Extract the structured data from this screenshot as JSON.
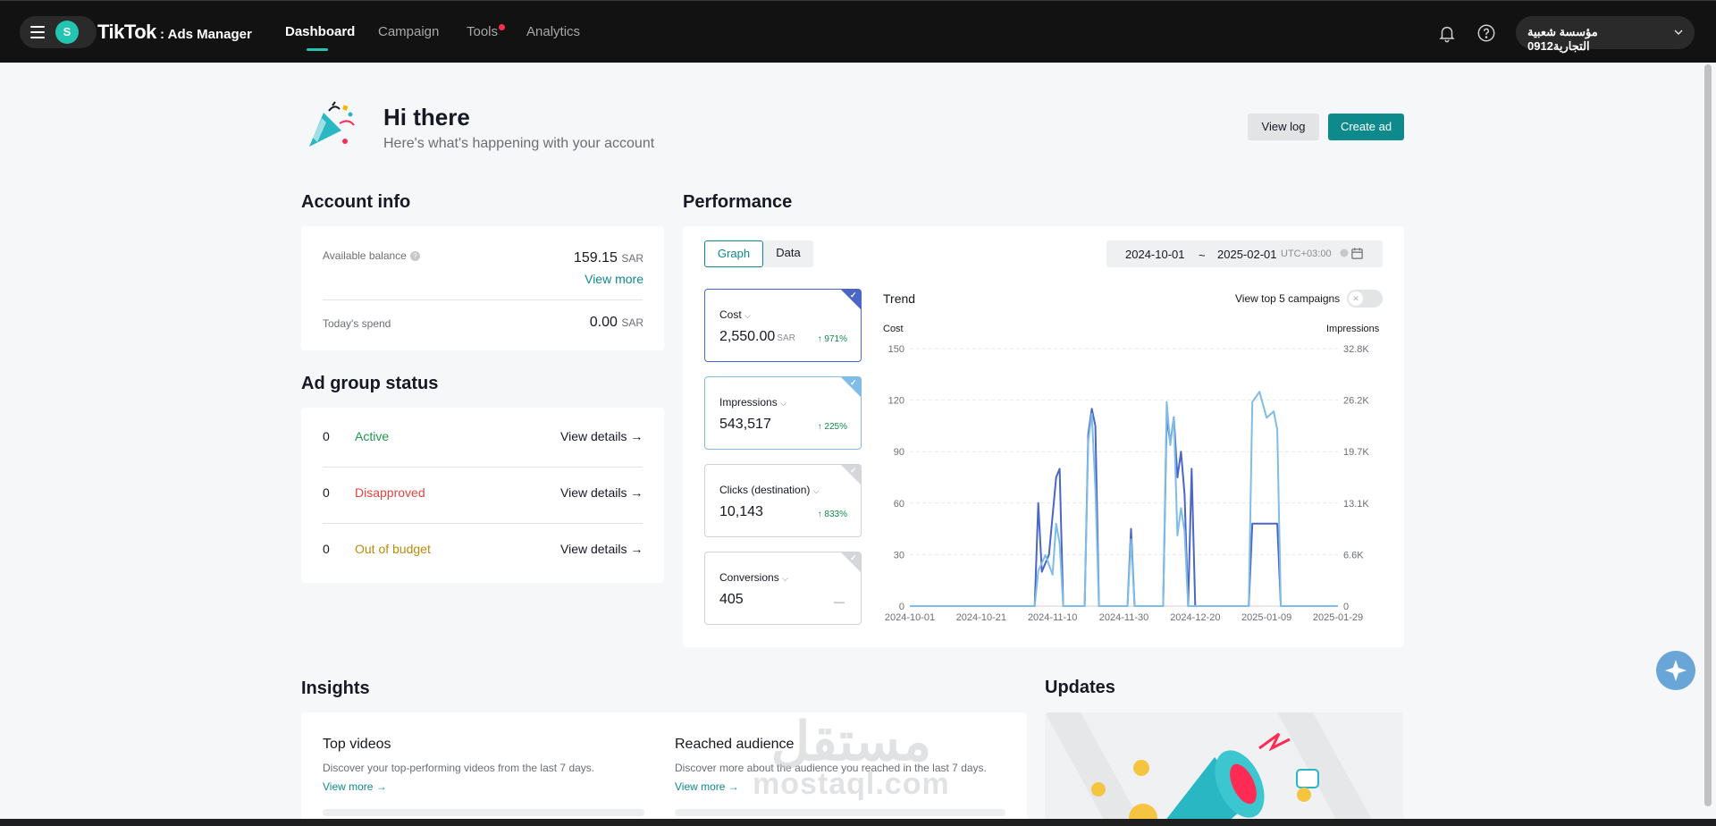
{
  "nav": {
    "logo": "TikTok",
    "logo_sub": "Ads Manager",
    "avatar_letter": "S",
    "items": [
      "Dashboard",
      "Campaign",
      "Tools",
      "Analytics"
    ],
    "account_name": "مؤسسة شعبية التجارية0912"
  },
  "header": {
    "greeting": "Hi there",
    "subtitle": "Here's what's happening with your account",
    "view_log": "View log",
    "create_ad": "Create ad"
  },
  "account_info": {
    "title": "Account info",
    "balance_label": "Available balance",
    "balance_value": "159.15",
    "currency": "SAR",
    "view_more": "View more",
    "spend_label": "Today's spend",
    "spend_value": "0.00"
  },
  "ad_group_status": {
    "title": "Ad group status",
    "rows": [
      {
        "count": "0",
        "label": "Active",
        "color": "#1a9a4a",
        "link": "View details →"
      },
      {
        "count": "0",
        "label": "Disapproved",
        "color": "#e0453f",
        "link": "View details →"
      },
      {
        "count": "0",
        "label": "Out of budget",
        "color": "#b88a0a",
        "link": "View details →"
      }
    ]
  },
  "performance": {
    "title": "Performance",
    "tab_graph": "Graph",
    "tab_data": "Data",
    "date_start": "2024-10-01",
    "date_sep": "~",
    "date_end": "2025-02-01",
    "timezone": "UTC+03:00",
    "metrics": [
      {
        "name": "Cost",
        "value": "2,550.00",
        "unit": "SAR",
        "change": "↑ 971%"
      },
      {
        "name": "Impressions",
        "value": "543,517",
        "unit": "",
        "change": "↑ 225%"
      },
      {
        "name": "Clicks (destination)",
        "value": "10,143",
        "unit": "",
        "change": "↑ 833%"
      },
      {
        "name": "Conversions",
        "value": "405",
        "unit": "",
        "change": "—"
      }
    ],
    "trend_title": "Trend",
    "top5_label": "View top 5 campaigns"
  },
  "chart_data": {
    "type": "line",
    "title": "Trend",
    "ylabel_left": "Cost",
    "ylabel_right": "Impressions",
    "y_left_ticks": [
      "150",
      "120",
      "90",
      "60",
      "30",
      "0"
    ],
    "y_right_ticks": [
      "32.8K",
      "26.2K",
      "19.7K",
      "13.1K",
      "6.6K",
      "0"
    ],
    "ylim_left": [
      0,
      150
    ],
    "ylim_right": [
      0,
      32800
    ],
    "x_ticks": [
      "2024-10-01",
      "2024-10-21",
      "2024-11-10",
      "2024-11-30",
      "2024-12-20",
      "2025-01-09",
      "2025-01-29"
    ],
    "series": [
      {
        "name": "Cost",
        "axis": "left",
        "color": "#4a66c6",
        "points": [
          [
            "2024-10-01",
            0
          ],
          [
            "2024-11-05",
            0
          ],
          [
            "2024-11-06",
            60
          ],
          [
            "2024-11-07",
            20
          ],
          [
            "2024-11-09",
            30
          ],
          [
            "2024-11-11",
            75
          ],
          [
            "2024-11-12",
            80
          ],
          [
            "2024-11-13",
            0
          ],
          [
            "2024-11-19",
            0
          ],
          [
            "2024-11-20",
            100
          ],
          [
            "2024-11-21",
            115
          ],
          [
            "2024-11-22",
            105
          ],
          [
            "2024-11-23",
            0
          ],
          [
            "2024-12-01",
            0
          ],
          [
            "2024-12-02",
            45
          ],
          [
            "2024-12-03",
            0
          ],
          [
            "2024-12-11",
            0
          ],
          [
            "2024-12-12",
            110
          ],
          [
            "2024-12-13",
            95
          ],
          [
            "2024-12-14",
            110
          ],
          [
            "2024-12-15",
            75
          ],
          [
            "2024-12-16",
            90
          ],
          [
            "2024-12-17",
            65
          ],
          [
            "2024-12-18",
            0
          ],
          [
            "2024-12-19",
            80
          ],
          [
            "2024-12-20",
            0
          ],
          [
            "2025-01-04",
            0
          ],
          [
            "2025-01-05",
            48
          ],
          [
            "2025-01-12",
            48
          ],
          [
            "2025-01-13",
            0
          ],
          [
            "2025-01-29",
            0
          ]
        ]
      },
      {
        "name": "Impressions",
        "axis": "right",
        "color": "#7fbde8",
        "points": [
          [
            "2024-10-01",
            0
          ],
          [
            "2024-11-05",
            0
          ],
          [
            "2024-11-06",
            4500
          ],
          [
            "2024-11-08",
            6500
          ],
          [
            "2024-11-10",
            4000
          ],
          [
            "2024-11-11",
            10500
          ],
          [
            "2024-11-12",
            8000
          ],
          [
            "2024-11-13",
            0
          ],
          [
            "2024-11-19",
            0
          ],
          [
            "2024-11-20",
            21000
          ],
          [
            "2024-11-21",
            24500
          ],
          [
            "2024-11-22",
            15000
          ],
          [
            "2024-11-23",
            0
          ],
          [
            "2024-12-01",
            0
          ],
          [
            "2024-12-02",
            8500
          ],
          [
            "2024-12-03",
            0
          ],
          [
            "2024-12-11",
            0
          ],
          [
            "2024-12-12",
            26000
          ],
          [
            "2024-12-13",
            20500
          ],
          [
            "2024-12-14",
            24000
          ],
          [
            "2024-12-15",
            9000
          ],
          [
            "2024-12-16",
            12500
          ],
          [
            "2024-12-17",
            9500
          ],
          [
            "2024-12-18",
            0
          ],
          [
            "2025-01-04",
            0
          ],
          [
            "2025-01-05",
            26000
          ],
          [
            "2025-01-07",
            27300
          ],
          [
            "2025-01-09",
            24000
          ],
          [
            "2025-01-11",
            24800
          ],
          [
            "2025-01-12",
            22500
          ],
          [
            "2025-01-13",
            0
          ],
          [
            "2025-01-29",
            0
          ]
        ]
      }
    ],
    "grid": true,
    "legend": "none"
  },
  "insights": {
    "title": "Insights",
    "top_videos_title": "Top videos",
    "top_videos_sub": "Discover your top-performing videos from the last 7 days.",
    "reached_title": "Reached audience",
    "reached_sub": "Discover more about the audience you reached in the last 7 days.",
    "view_more": "View more →"
  },
  "updates": {
    "title": "Updates"
  },
  "watermark": {
    "arabic": "مستقل",
    "latin": "mostaql.com"
  }
}
